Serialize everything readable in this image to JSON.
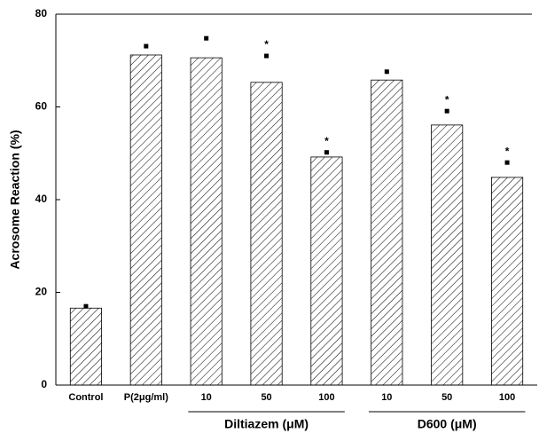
{
  "chart_data": {
    "type": "bar",
    "y_label": "Acrosome Reaction (%)",
    "categories": [
      "Control",
      "P(2μg/ml)",
      "10",
      "50",
      "100",
      "10",
      "50",
      "100"
    ],
    "values": [
      16.6,
      71.2,
      70.6,
      65.3,
      49.2,
      65.8,
      56.1,
      44.8
    ],
    "errors": [
      0.4,
      1.9,
      4.2,
      5.7,
      1.0,
      1.8,
      3.0,
      3.2
    ],
    "significance": [
      null,
      null,
      null,
      "*",
      "*",
      null,
      "*",
      "*"
    ],
    "groups": [
      {
        "label": "Diltiazem (μM)",
        "start": 2,
        "end": 4
      },
      {
        "label": "D600 (μM)",
        "start": 5,
        "end": 7
      }
    ],
    "color": "#000000",
    "ylim": [
      0,
      80
    ],
    "yticks": [
      0,
      20,
      40,
      60,
      80
    ]
  }
}
